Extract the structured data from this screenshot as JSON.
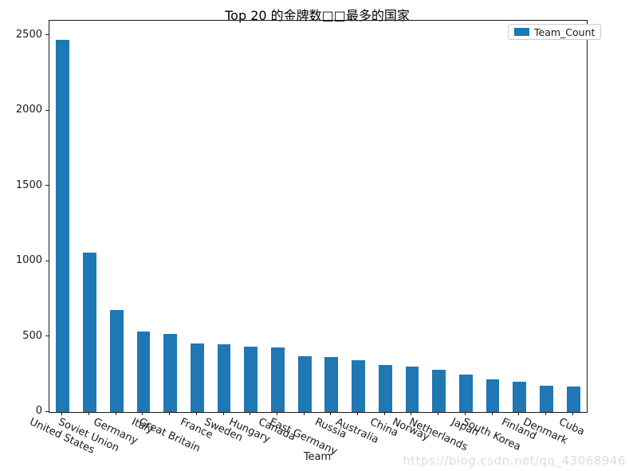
{
  "figure": {
    "title": "Top 20 的金牌数□□最多的国家",
    "watermark": "https://blog.csdn.net/qq_43068946"
  },
  "colors": {
    "bar": "#1f77b4",
    "spine": "#1a1a1a",
    "legend_border": "#cccccc",
    "watermark": "#dcdcdc"
  },
  "chart_data": {
    "type": "bar",
    "title": "Top 20 的金牌数□□最多的国家",
    "xlabel": "Team",
    "ylabel": "",
    "categories": [
      "United States",
      "Soviet Union",
      "Germany",
      "Italy",
      "Great Britain",
      "France",
      "Sweden",
      "Hungary",
      "Canada",
      "East Germany",
      "Russia",
      "Australia",
      "China",
      "Norway",
      "Netherlands",
      "Japan",
      "South Korea",
      "Finland",
      "Denmark",
      "Cuba"
    ],
    "values": [
      2474,
      1058,
      679,
      535,
      519,
      455,
      448,
      432,
      429,
      369,
      364,
      345,
      310,
      302,
      283,
      249,
      218,
      203,
      174,
      168
    ],
    "series_name": "Team_Count",
    "ylim": [
      0,
      2600
    ],
    "yticks": [
      0,
      500,
      1000,
      1500,
      2000,
      2500
    ],
    "bar_color": "#1f77b4",
    "bar_width_fraction": 0.5,
    "x_tick_rotation_deg": -25,
    "legend": [
      "Team_Count"
    ],
    "legend_position": "upper right",
    "grid": false
  }
}
